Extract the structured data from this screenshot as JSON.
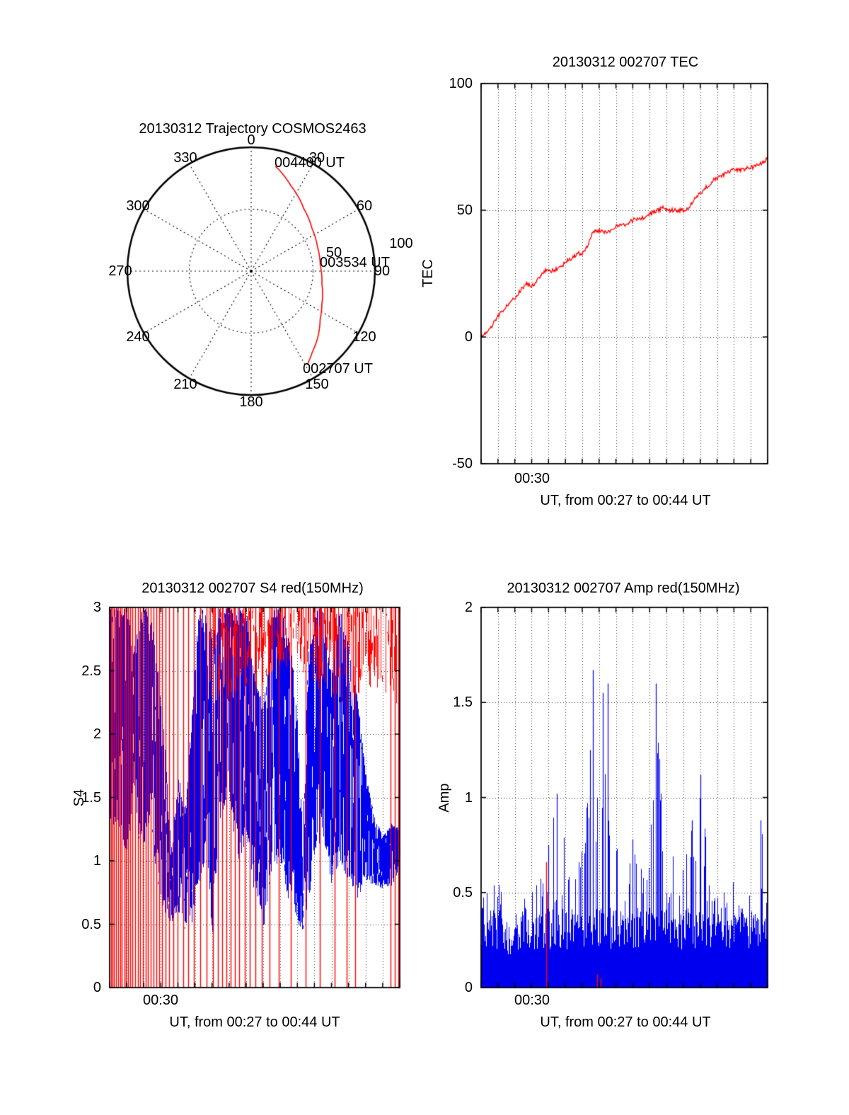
{
  "render": {
    "seed": 20130312
  },
  "colors": {
    "red": "#ff0000",
    "blue": "#0000ee",
    "axis": "#000000",
    "background": "#ffffff"
  },
  "panels": {
    "polar": {
      "title": "20130312 Trajectory COSMOS2463",
      "azimuth_labels": [
        "0",
        "30",
        "60",
        "90",
        "120",
        "150",
        "180",
        "210",
        "240",
        "270",
        "300",
        "330"
      ],
      "radial_labels": [
        "50",
        "100"
      ],
      "annotations": [
        "004400 UT",
        "003534 UT",
        "002707 UT"
      ]
    },
    "tec": {
      "title": "20130312 002707 TEC",
      "ylabel": "TEC",
      "xlabel": "UT, from 00:27 to 00:44 UT",
      "yticks": [
        "100",
        "50",
        "0",
        "-50"
      ],
      "xtick": "00:30"
    },
    "s4": {
      "title": "20130312 002707 S4 red(150MHz)",
      "ylabel": "S4",
      "xlabel": "UT, from 00:27 to 00:44 UT",
      "yticks": [
        "3",
        "2.5",
        "2",
        "1.5",
        "1",
        "0.5",
        "0"
      ],
      "xtick": "00:30"
    },
    "amp": {
      "title": "20130312 002707 Amp red(150MHz)",
      "ylabel": "Amp",
      "xlabel": "UT, from 00:27 to 00:44 UT",
      "yticks": [
        "2",
        "1.5",
        "1",
        "0.5",
        "0"
      ],
      "xtick": "00:30"
    }
  },
  "chart_data": [
    {
      "id": "trajectory",
      "type": "line",
      "projection": "polar",
      "title": "20130312 Trajectory COSMOS2463",
      "azimuth_ticks_deg": [
        0,
        30,
        60,
        90,
        120,
        150,
        180,
        210,
        240,
        270,
        300,
        330
      ],
      "radial_ticks": [
        50,
        100
      ],
      "radial_max": 100,
      "grid": "dotted",
      "series": [
        {
          "name": "COSMOS2463 pass",
          "color": "#ff0000",
          "points_az_zen": [
            [
              13,
              87
            ],
            [
              25,
              76
            ],
            [
              40,
              66
            ],
            [
              55,
              60
            ],
            [
              70,
              57
            ],
            [
              85,
              56
            ],
            [
              100,
              58
            ],
            [
              115,
              63
            ],
            [
              125,
              68
            ],
            [
              135,
              76
            ],
            [
              143,
              82
            ],
            [
              149,
              88
            ]
          ]
        }
      ],
      "annotations": [
        {
          "label": "004400 UT",
          "az": 13,
          "zen": 87
        },
        {
          "label": "003534 UT",
          "az": 90,
          "zen": 57
        },
        {
          "label": "002707 UT",
          "az": 149,
          "zen": 88
        }
      ]
    },
    {
      "id": "tec",
      "type": "line",
      "title": "20130312 002707 TEC",
      "xlabel": "UT, from 00:27 to 00:44 UT",
      "ylabel": "TEC",
      "x_minutes_range": [
        27,
        44
      ],
      "ylim": [
        -50,
        100
      ],
      "yticks": [
        -50,
        0,
        50,
        100
      ],
      "ygrid": [
        0,
        50
      ],
      "xgrid_every_minutes": 1,
      "xtick_labeled": {
        "minute": 30,
        "label": "00:30"
      },
      "series": [
        {
          "name": "TEC",
          "color": "#ff0000",
          "points_t_v": [
            [
              27,
              0
            ],
            [
              27.3,
              2
            ],
            [
              27.6,
              4
            ],
            [
              27.9,
              7
            ],
            [
              28.2,
              10
            ],
            [
              28.5,
              12
            ],
            [
              28.8,
              14
            ],
            [
              29.1,
              16
            ],
            [
              29.4,
              19
            ],
            [
              29.7,
              21
            ],
            [
              30,
              20
            ],
            [
              30.3,
              22
            ],
            [
              30.6,
              25
            ],
            [
              30.9,
              27
            ],
            [
              31.2,
              26
            ],
            [
              31.5,
              27
            ],
            [
              31.8,
              28
            ],
            [
              32.1,
              30
            ],
            [
              32.4,
              31
            ],
            [
              32.7,
              33
            ],
            [
              33,
              33
            ],
            [
              33.3,
              36
            ],
            [
              33.6,
              41
            ],
            [
              33.9,
              42
            ],
            [
              34.2,
              42
            ],
            [
              34.5,
              41
            ],
            [
              34.8,
              43
            ],
            [
              35.1,
              44
            ],
            [
              35.4,
              44
            ],
            [
              35.7,
              45
            ],
            [
              36,
              46
            ],
            [
              36.3,
              47
            ],
            [
              36.6,
              47
            ],
            [
              36.9,
              48
            ],
            [
              37.2,
              49
            ],
            [
              37.5,
              50
            ],
            [
              37.8,
              51
            ],
            [
              38.1,
              50
            ],
            [
              38.4,
              50
            ],
            [
              38.7,
              50
            ],
            [
              39,
              50
            ],
            [
              39.3,
              51
            ],
            [
              39.6,
              54
            ],
            [
              39.9,
              56
            ],
            [
              40.2,
              58
            ],
            [
              40.5,
              60
            ],
            [
              40.8,
              62
            ],
            [
              41.1,
              63
            ],
            [
              41.4,
              64
            ],
            [
              41.7,
              65
            ],
            [
              42,
              66
            ],
            [
              42.3,
              66
            ],
            [
              42.6,
              66
            ],
            [
              42.9,
              67
            ],
            [
              43.2,
              67
            ],
            [
              43.5,
              68
            ],
            [
              43.8,
              69
            ],
            [
              44,
              71
            ]
          ]
        }
      ]
    },
    {
      "id": "s4",
      "type": "line",
      "title": "20130312 002707 S4 red(150MHz)",
      "xlabel": "UT, from 00:27 to 00:44 UT",
      "ylabel": "S4",
      "x_minutes_range": [
        27,
        44
      ],
      "ylim": [
        0,
        3
      ],
      "yticks": [
        0,
        0.5,
        1,
        1.5,
        2,
        2.5,
        3
      ],
      "ygrid": [
        0.5,
        1,
        1.5,
        2,
        2.5
      ],
      "xgrid_every_minutes": 1,
      "xtick_labeled": {
        "minute": 30,
        "label": "00:30"
      },
      "series": [
        {
          "name": "red (150MHz)",
          "color": "#ff0000",
          "style": "saturated-spikes",
          "spike_minutes": [
            27.07,
            27.15,
            27.25,
            27.38,
            27.5,
            27.62,
            27.72,
            27.85,
            27.95,
            28.07,
            28.2,
            28.33,
            28.5,
            28.65,
            28.8,
            28.95,
            29.1,
            29.25,
            29.4,
            29.55,
            29.72,
            29.9,
            30.08,
            30.28,
            30.5,
            30.75,
            31.0,
            31.3,
            31.6,
            31.95,
            32.3,
            32.7,
            33.05,
            33.35,
            33.6,
            33.85,
            34.1,
            34.35,
            34.6,
            34.9,
            35.2,
            35.55,
            35.9,
            36.35,
            36.9,
            37.6,
            38.5,
            39.3,
            40.2,
            40.9,
            41.4,
            43.45,
            43.7,
            43.9
          ],
          "top_band_lo_t_v": [
            [
              32.8,
              2.3
            ],
            [
              34,
              2.2
            ],
            [
              35,
              2.3
            ],
            [
              36,
              2.4
            ],
            [
              37,
              2.5
            ],
            [
              38,
              2.55
            ],
            [
              39,
              2.35
            ],
            [
              40,
              2.3
            ],
            [
              41,
              2.2
            ],
            [
              42,
              2.35
            ],
            [
              43,
              2.3
            ],
            [
              44,
              2.15
            ]
          ],
          "top_band_hi": 3
        },
        {
          "name": "blue",
          "color": "#0000ee",
          "style": "noisy-envelope",
          "envelope_t_lo_hi": [
            [
              27,
              1.3,
              3.0
            ],
            [
              27.6,
              1.25,
              3.0
            ],
            [
              28,
              1.0,
              3.0
            ],
            [
              28.4,
              1.5,
              2.7
            ],
            [
              28.8,
              1.0,
              3.0
            ],
            [
              29.3,
              1.3,
              3.0
            ],
            [
              29.8,
              0.8,
              2.6
            ],
            [
              30.2,
              0.6,
              2.0
            ],
            [
              30.6,
              0.5,
              1.1
            ],
            [
              31,
              0.6,
              1.7
            ],
            [
              31.4,
              0.45,
              1.4
            ],
            [
              31.8,
              0.5,
              2.2
            ],
            [
              32.2,
              0.8,
              3.0
            ],
            [
              32.7,
              1.0,
              3.0
            ],
            [
              33,
              0.4,
              2.8
            ],
            [
              33.4,
              1.3,
              3.0
            ],
            [
              34,
              1.5,
              3.0
            ],
            [
              34.5,
              0.9,
              3.0
            ],
            [
              35,
              1.2,
              3.0
            ],
            [
              35.5,
              0.7,
              2.5
            ],
            [
              36,
              0.45,
              2.2
            ],
            [
              36.5,
              0.9,
              3.0
            ],
            [
              37,
              1.0,
              3.0
            ],
            [
              37.6,
              0.6,
              2.8
            ],
            [
              38,
              0.5,
              2.1
            ],
            [
              38.3,
              0.45,
              1.2
            ],
            [
              38.6,
              0.6,
              2.6
            ],
            [
              39,
              1.0,
              3.0
            ],
            [
              39.5,
              1.2,
              3.0
            ],
            [
              40,
              0.8,
              2.5
            ],
            [
              40.5,
              1.0,
              3.0
            ],
            [
              41,
              0.8,
              2.7
            ],
            [
              41.5,
              0.7,
              2.3
            ],
            [
              42,
              0.85,
              1.7
            ],
            [
              42.5,
              0.8,
              1.35
            ],
            [
              43,
              0.78,
              1.2
            ],
            [
              43.5,
              0.8,
              1.3
            ],
            [
              44,
              0.9,
              1.25
            ]
          ]
        }
      ]
    },
    {
      "id": "amp",
      "type": "line",
      "title": "20130312 002707 Amp red(150MHz)",
      "xlabel": "UT, from 00:27 to 00:44 UT",
      "ylabel": "Amp",
      "x_minutes_range": [
        27,
        44
      ],
      "ylim": [
        0,
        2
      ],
      "yticks": [
        0,
        0.5,
        1,
        1.5,
        2
      ],
      "ygrid": [
        0.5,
        1,
        1.5
      ],
      "xgrid_every_minutes": 1,
      "xtick_labeled": {
        "minute": 30,
        "label": "00:30"
      },
      "series": [
        {
          "name": "blue",
          "color": "#0000ee",
          "style": "noisy-baseline",
          "envelope_t_max": [
            [
              27,
              0.58
            ],
            [
              27.4,
              0.75
            ],
            [
              27.8,
              0.72
            ],
            [
              28.2,
              0.5
            ],
            [
              28.6,
              0.42
            ],
            [
              29,
              0.42
            ],
            [
              29.5,
              0.5
            ],
            [
              30,
              0.55
            ],
            [
              30.5,
              0.62
            ],
            [
              31,
              0.75
            ],
            [
              31.5,
              1.02
            ],
            [
              31.9,
              0.9
            ],
            [
              32.3,
              0.55
            ],
            [
              32.7,
              0.6
            ],
            [
              33.1,
              0.9
            ],
            [
              33.45,
              1.3
            ],
            [
              33.65,
              1.67
            ],
            [
              33.9,
              1.2
            ],
            [
              34.2,
              1.55
            ],
            [
              34.5,
              1.58
            ],
            [
              34.8,
              0.9
            ],
            [
              35.2,
              0.65
            ],
            [
              35.6,
              0.62
            ],
            [
              36,
              0.78
            ],
            [
              36.5,
              0.62
            ],
            [
              37,
              0.72
            ],
            [
              37.35,
              1.6
            ],
            [
              37.7,
              1.0
            ],
            [
              38.1,
              0.52
            ],
            [
              38.5,
              0.78
            ],
            [
              39,
              0.62
            ],
            [
              39.5,
              0.88
            ],
            [
              40,
              1.12
            ],
            [
              40.4,
              0.72
            ],
            [
              40.8,
              0.48
            ],
            [
              41.2,
              0.52
            ],
            [
              41.6,
              0.58
            ],
            [
              42,
              0.62
            ],
            [
              42.4,
              0.52
            ],
            [
              42.8,
              0.56
            ],
            [
              43.2,
              0.6
            ],
            [
              43.6,
              0.88
            ],
            [
              44,
              0.86
            ]
          ],
          "peaks_t_v": [
            [
              31,
              0.75
            ],
            [
              31.5,
              1.02
            ],
            [
              33.45,
              1.25
            ],
            [
              33.65,
              1.67
            ],
            [
              34.2,
              1.55
            ],
            [
              34.5,
              1.6
            ],
            [
              36,
              0.78
            ],
            [
              37.35,
              1.6
            ],
            [
              39.5,
              0.88
            ],
            [
              40,
              1.12
            ],
            [
              43.6,
              0.88
            ],
            [
              44,
              0.86
            ]
          ]
        },
        {
          "name": "red (150MHz)",
          "color": "#ff0000",
          "style": "spikes",
          "spikes_t_v": [
            [
              30.85,
              0.66
            ],
            [
              33.9,
              0.07
            ],
            [
              34.1,
              0.05
            ]
          ]
        }
      ]
    }
  ]
}
